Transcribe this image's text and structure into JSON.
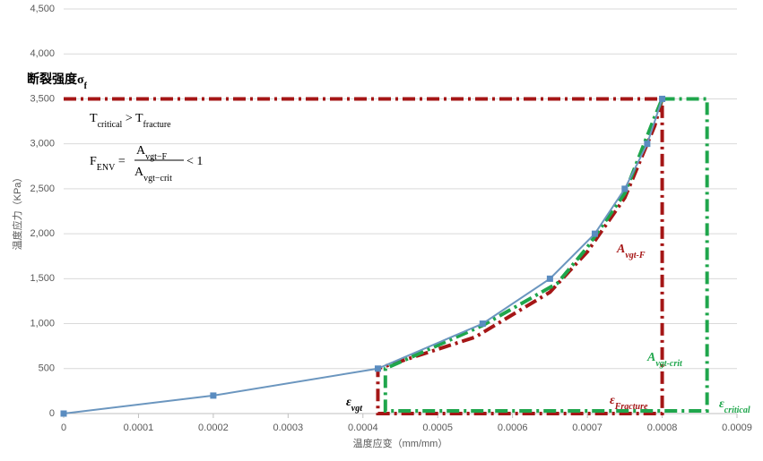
{
  "chart_data": {
    "type": "line",
    "x_label": "温度应变（mm/mm）",
    "y_label": "温度应力（KPa）",
    "xlim": [
      0,
      0.0009
    ],
    "xticks": [
      0,
      0.0001,
      0.0002,
      0.0003,
      0.0004,
      0.0005,
      0.0006,
      0.0007,
      0.0008,
      0.0009
    ],
    "ylim": [
      0,
      4500
    ],
    "yticks": [
      0,
      500,
      {
        "value": 1000,
        "label": "1,000"
      },
      {
        "value": 1500,
        "label": "1,500"
      },
      {
        "value": 2000,
        "label": "2,000"
      },
      {
        "value": 2500,
        "label": "2,500"
      },
      {
        "value": 3000,
        "label": "3,000"
      },
      {
        "value": 3500,
        "label": "3,500"
      },
      {
        "value": 4000,
        "label": "4,000"
      },
      {
        "value": 4500,
        "label": "4,500"
      }
    ],
    "grid": true,
    "series": [
      {
        "color": "#a51616",
        "style": "dashdot",
        "x": [
          0,
          0.0008,
          0.0008,
          0.00042,
          0.00042,
          0.00055,
          0.00065,
          0.0007,
          0.00075,
          0.00079,
          0.0008
        ],
        "values": [
          3500,
          3500,
          0,
          0,
          500,
          850,
          1350,
          1800,
          2400,
          3200,
          3500
        ]
      },
      {
        "color": "#1fa64c",
        "style": "dashdot",
        "x": [
          0.0008,
          0.00086,
          0.00086,
          0.00043,
          0.00043,
          0.00056,
          0.00066,
          0.0007,
          0.00075,
          0.00079,
          0.0008
        ],
        "values": [
          3500,
          3500,
          30,
          30,
          500,
          980,
          1450,
          1850,
          2450,
          3300,
          3500
        ]
      },
      {
        "color": "#6b96bf",
        "style": "solid",
        "markers": true,
        "x": [
          0,
          0.0002,
          0.00042,
          0.00056,
          0.00065,
          0.00071,
          0.00075,
          0.00078,
          0.0008
        ],
        "values": [
          0,
          200,
          500,
          1000,
          1500,
          2000,
          2500,
          3000,
          3500
        ]
      }
    ],
    "annotations": [
      {
        "segments": [
          {
            "text": "断裂强度σ"
          },
          {
            "sub": "f"
          }
        ]
      },
      {
        "segments": [
          {
            "text": "T"
          },
          {
            "sub": "critical"
          },
          {
            "text": " > T"
          },
          {
            "sub": "fracture"
          }
        ]
      },
      {
        "lhs": [
          {
            "text": "F"
          },
          {
            "sub": "ENV"
          },
          {
            "text": " = "
          }
        ],
        "num": [
          {
            "text": "A"
          },
          {
            "sub": "vgt−F"
          }
        ],
        "den": [
          {
            "text": "A"
          },
          {
            "sub": "vgt−crit"
          }
        ],
        "rhs": [
          {
            "text": "< 1"
          }
        ]
      },
      {
        "segments": [
          {
            "text": "A"
          },
          {
            "sub": "vgt-F"
          }
        ]
      },
      {
        "segments": [
          {
            "text": "A"
          },
          {
            "sub": "vgt-crit"
          }
        ]
      },
      {
        "segments": [
          {
            "text": "ε"
          },
          {
            "sub": "vgt"
          }
        ]
      },
      {
        "segments": [
          {
            "text": "ε"
          },
          {
            "sub": "Fracture"
          }
        ]
      },
      {
        "segments": [
          {
            "text": "ε"
          },
          {
            "sub": "critical"
          }
        ]
      }
    ]
  }
}
